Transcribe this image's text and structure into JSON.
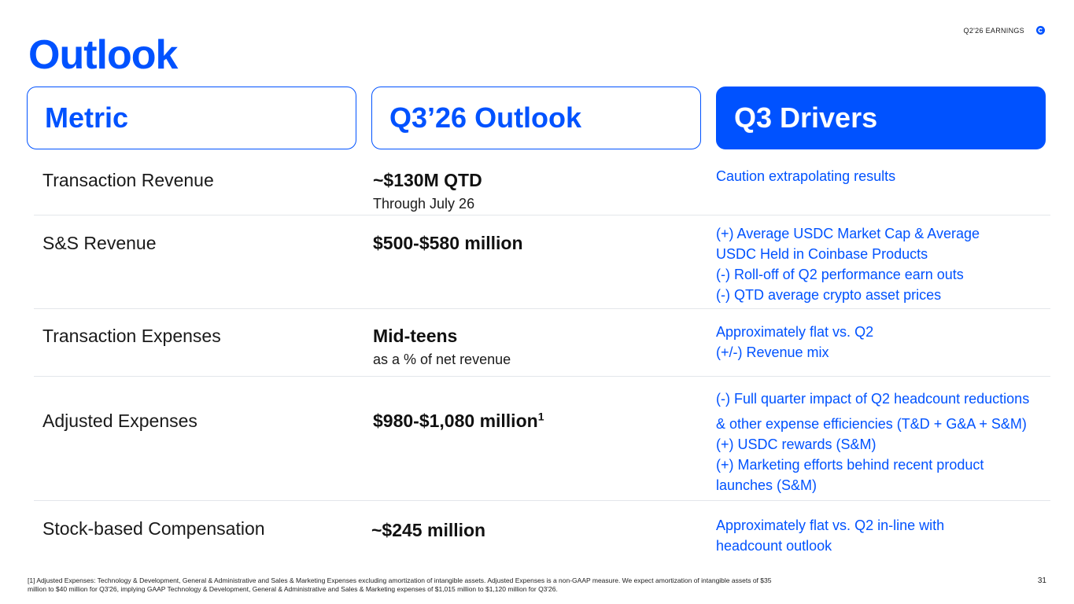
{
  "header": {
    "tag": "Q2'26 EARNINGS",
    "logo_icon": "coinbase-logo-icon",
    "accent": "#0052ff"
  },
  "title": "Outlook",
  "columns": [
    "Metric",
    "Q3’26 Outlook",
    "Q3 Drivers"
  ],
  "rows": [
    {
      "metric": "Transaction Revenue",
      "outlook": "~$130M QTD",
      "outlook_sub": "Through July 26",
      "drivers": [
        "Caution extrapolating results"
      ]
    },
    {
      "metric": "S&S Revenue",
      "outlook": "$500-$580 million",
      "outlook_sub": "",
      "drivers": [
        "(+) Average USDC Market Cap & Average",
        "USDC Held in Coinbase Products",
        "(-) Roll-off of Q2 performance earn outs",
        "(-) QTD average crypto asset prices"
      ]
    },
    {
      "metric": "Transaction Expenses",
      "outlook": "Mid-teens",
      "outlook_sub": "as a % of net revenue",
      "drivers": [
        "Approximately flat vs. Q2",
        "(+/-) Revenue mix"
      ]
    },
    {
      "metric": "Adjusted Expenses",
      "outlook": "$980-$1,080 million",
      "outlook_sup": "1",
      "outlook_sub": "",
      "drivers": [
        "(-) Full quarter impact of Q2 headcount reductions",
        "& other expense efficiencies (T&D + G&A + S&M)",
        "(+) USDC rewards (S&M)",
        "(+) Marketing efforts behind recent product",
        "launches (S&M)"
      ]
    },
    {
      "metric": "Stock-based Compensation",
      "outlook": "~$245 million",
      "outlook_sub": "",
      "drivers": [
        "Approximately flat vs. Q2 in-line with",
        "headcount outlook"
      ]
    }
  ],
  "footnote": "[1] Adjusted Expenses: Technology & Development, General & Administrative and Sales & Marketing Expenses excluding amortization of intangible assets. Adjusted Expenses is a non-GAAP measure. We expect amortization of intangible assets of $35 million to $40 million for Q3'26, implying GAAP Technology & Development, General & Administrative and Sales & Marketing expenses of $1,015 million to $1,120 million for Q3'26.",
  "page_number": "31"
}
